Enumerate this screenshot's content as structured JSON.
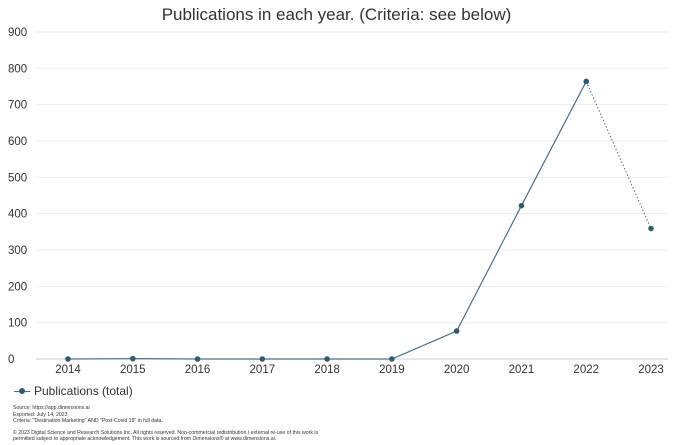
{
  "chart_data": {
    "type": "line",
    "title": "Publications in each year. (Criteria: see below)",
    "xlabel": "",
    "ylabel": "",
    "categories": [
      "2014",
      "2015",
      "2016",
      "2017",
      "2018",
      "2019",
      "2020",
      "2021",
      "2022",
      "2023"
    ],
    "series": [
      {
        "name": "Publications (total)",
        "values": [
          0,
          1,
          0,
          0,
          0,
          0,
          77,
          422,
          764,
          359
        ],
        "color": "#2f5b74",
        "line_color": "#4a6f8f",
        "dotted_last_segment": true
      }
    ],
    "ylim": [
      0,
      900
    ],
    "yticks": [
      "0",
      "100",
      "200",
      "300",
      "400",
      "500",
      "600",
      "700",
      "800",
      "900"
    ],
    "grid": true,
    "legend_position": "bottom-left"
  },
  "footer": {
    "source": "Source: https://app.dimensions.ai",
    "exported": "Exported: July 14, 2023",
    "criteria": "Criteria: \"Destination Marketing\" AND \"Post-Covid 19\" in full data.",
    "copyright_1": "© 2023 Digital Science and Research Solutions Inc. All rights reserved. Non-commercial redistribution / external re-use of this work is",
    "copyright_2": "permitted subject to appropriate acknowledgement. This work is sourced from Dimensions® at www.dimensions.ai."
  }
}
